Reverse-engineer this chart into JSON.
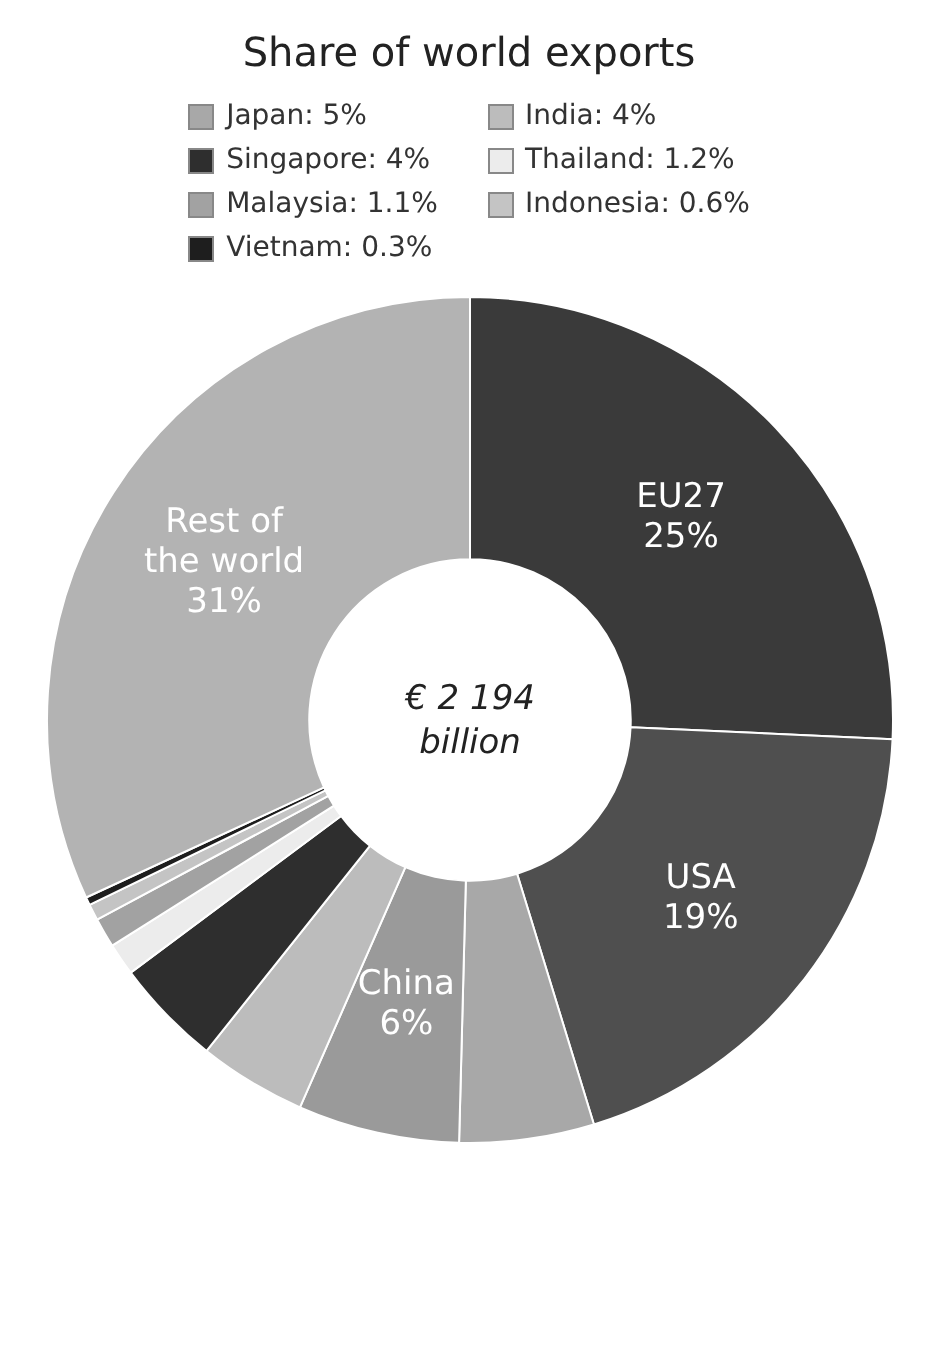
{
  "chart_data": {
    "type": "donut",
    "title": "Share of world exports",
    "categories": [
      "EU27",
      "USA",
      "Japan",
      "China",
      "India",
      "Singapore",
      "Thailand",
      "Malaysia",
      "Indonesia",
      "Vietnam",
      "Rest of the world"
    ],
    "values": [
      25,
      19,
      5,
      6,
      4,
      4,
      1.2,
      1.1,
      0.6,
      0.3,
      31
    ],
    "value_labels": [
      "25%",
      "19%",
      "5%",
      "6%",
      "4%",
      "4%",
      "1.2%",
      "1.1%",
      "0.6%",
      "0.3%",
      "31%"
    ],
    "colors": [
      "#3a3a3a",
      "#4f4f4f",
      "#a8a8a8",
      "#9a9a9a",
      "#bcbcbc",
      "#2e2e2e",
      "#ececec",
      "#a2a2a2",
      "#c4c4c4",
      "#1e1e1e",
      "#b3b3b3"
    ],
    "annotations": [
      "€ 2 194 billion"
    ],
    "legend": "top"
  }
}
